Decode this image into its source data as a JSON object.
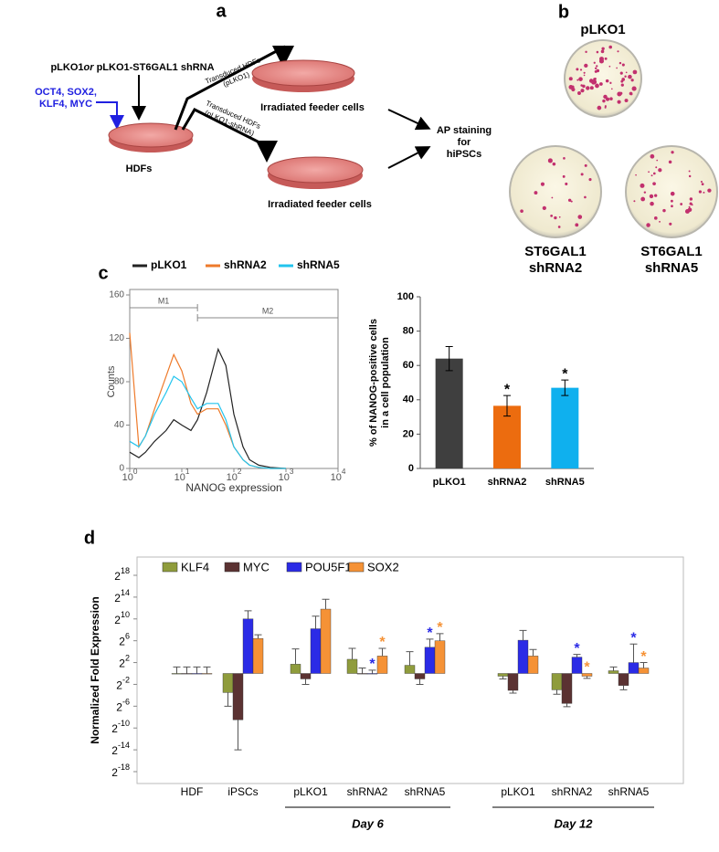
{
  "panels": {
    "a": "a",
    "b": "b",
    "c": "c",
    "d": "d"
  },
  "diagram": {
    "vector1": "pLKO1",
    "or": "or",
    "vector2": " pLKO1-ST6GAL1 shRNA",
    "factors": [
      "OCT4, SOX2,",
      "KLF4, MYC"
    ],
    "cells": "HDFs",
    "route1": [
      "Transduced HDFs",
      "(pLKO1)"
    ],
    "route2": [
      "Transduced HDFs",
      "(pLKO1-shRNA)"
    ],
    "feeder": [
      "Irradiated feeder cells",
      "Irradiated feeder cells"
    ],
    "readout": [
      "AP staining",
      "for",
      "hiPSCs"
    ]
  },
  "plates": [
    {
      "label": [
        "pLKO1"
      ]
    },
    {
      "label": [
        "ST6GAL1",
        "shRNA2"
      ]
    },
    {
      "label": [
        "ST6GAL1",
        "shRNA5"
      ]
    }
  ],
  "chart_data": [
    {
      "type": "line",
      "xscale": "log",
      "xlabel": "NANOG expression",
      "ylabel": "Counts",
      "xlim": [
        1,
        10000
      ],
      "xticks": [
        {
          "value": 1,
          "label": "10^0"
        },
        {
          "value": 10,
          "label": "10^1"
        },
        {
          "value": 100,
          "label": "10^2"
        },
        {
          "value": 1000,
          "label": "10^3"
        },
        {
          "value": 10000,
          "label": "10^4"
        }
      ],
      "ylim": [
        0,
        160
      ],
      "yticks": [
        0,
        40,
        80,
        120,
        160
      ],
      "gates": [
        {
          "label": "M1",
          "range": [
            1,
            20
          ]
        },
        {
          "label": "M2",
          "range": [
            20,
            10000
          ]
        }
      ],
      "x": [
        1,
        1.5,
        2,
        3,
        5,
        7,
        10,
        15,
        20,
        30,
        50,
        70,
        100,
        150,
        200,
        300,
        500,
        1000
      ],
      "series": [
        {
          "name": "pLKO1",
          "color": "#222222",
          "values": [
            15,
            10,
            15,
            25,
            35,
            45,
            40,
            35,
            45,
            70,
            110,
            95,
            50,
            20,
            8,
            3,
            1,
            0
          ]
        },
        {
          "name": "shRNA2",
          "color": "#ee7a2a",
          "values": [
            125,
            20,
            30,
            55,
            85,
            105,
            90,
            60,
            50,
            55,
            55,
            40,
            20,
            8,
            3,
            1,
            0,
            0
          ]
        },
        {
          "name": "shRNA5",
          "color": "#22c4ee",
          "values": [
            25,
            20,
            30,
            50,
            70,
            85,
            80,
            65,
            55,
            60,
            60,
            45,
            20,
            8,
            3,
            1,
            0,
            0
          ]
        }
      ]
    },
    {
      "type": "bar",
      "ylabel": [
        "% of NANOG-positive cells",
        "in a cell population"
      ],
      "categories": [
        "pLKO1",
        "shRNA2",
        "shRNA5"
      ],
      "values": [
        64,
        36.5,
        47
      ],
      "errors": [
        7,
        6,
        4.5
      ],
      "colors": [
        "#3f3f3f",
        "#ec6c0f",
        "#0fb0ee"
      ],
      "stars": [
        null,
        "*",
        "*"
      ],
      "ylim": [
        0,
        100
      ],
      "yticks": [
        0,
        20,
        40,
        60,
        80,
        100
      ]
    },
    {
      "type": "grouped_bar",
      "ylabel": "Normalized Fold Expression",
      "categories": [
        "HDF",
        "iPSCs",
        "pLKO1",
        "shRNA2",
        "shRNA5",
        "pLKO1",
        "shRNA2",
        "shRNA5"
      ],
      "groups": [
        {
          "label": "Day 6",
          "span": [
            2,
            4
          ]
        },
        {
          "label": "Day 12",
          "span": [
            5,
            7
          ]
        }
      ],
      "ylim": [
        -18,
        18
      ],
      "yticks": [
        {
          "value": 18,
          "label": "2^18"
        },
        {
          "value": 14,
          "label": "2^14"
        },
        {
          "value": 10,
          "label": "2^10"
        },
        {
          "value": 6,
          "label": "2^6"
        },
        {
          "value": 2,
          "label": "2^2"
        },
        {
          "value": -2,
          "label": "2^-2"
        },
        {
          "value": -6,
          "label": "2^-6"
        },
        {
          "value": -10,
          "label": "2^-10"
        },
        {
          "value": -14,
          "label": "2^-14"
        },
        {
          "value": -18,
          "label": "2^-18"
        }
      ],
      "series": [
        {
          "name": "KLF4",
          "color": "#8f9c3c",
          "values": [
            0,
            -3.5,
            1.7,
            2.6,
            1.5,
            -0.5,
            -3,
            0.5
          ],
          "errors": [
            1.2,
            2.5,
            2.8,
            2,
            2.5,
            0.5,
            0.8,
            0.7
          ],
          "stars": [
            null,
            null,
            null,
            null,
            null,
            null,
            null,
            null
          ]
        },
        {
          "name": "MYC",
          "color": "#5b3232",
          "values": [
            0,
            -8.5,
            -1,
            0,
            -1,
            -3.1,
            -5.5,
            -2.2
          ],
          "errors": [
            1.2,
            5.5,
            1,
            1,
            1,
            0.5,
            0.6,
            0.8
          ],
          "stars": [
            null,
            null,
            null,
            null,
            null,
            null,
            null,
            null
          ]
        },
        {
          "name": "POU5F1",
          "color": "#2b2be6",
          "values": [
            0,
            10,
            8.2,
            0,
            4.8,
            6.1,
            3,
            2
          ],
          "errors": [
            1.2,
            1.5,
            2.3,
            0.6,
            1.5,
            1.8,
            0.5,
            3.4
          ],
          "stars": [
            null,
            null,
            null,
            "*",
            "*",
            null,
            "*",
            "*"
          ]
        },
        {
          "name": "SOX2",
          "color": "#f59236",
          "values": [
            0,
            6.4,
            11.8,
            3.2,
            6,
            3.2,
            -0.5,
            1
          ],
          "errors": [
            1.2,
            0.7,
            1.8,
            1.4,
            1.3,
            1.2,
            0.4,
            1
          ],
          "stars": [
            null,
            null,
            null,
            "*",
            "*",
            null,
            "*",
            "*"
          ]
        }
      ]
    }
  ]
}
